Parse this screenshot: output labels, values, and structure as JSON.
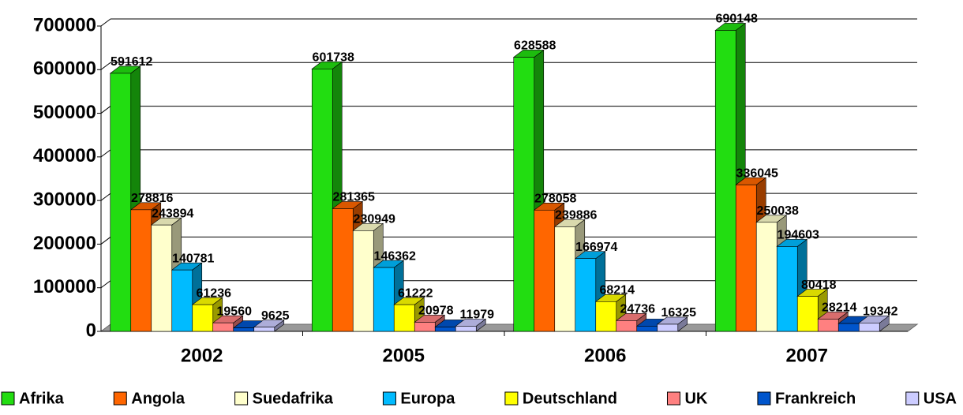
{
  "chart_data": {
    "type": "bar3d",
    "categories": [
      "2002",
      "2005",
      "2006",
      "2007"
    ],
    "series": [
      {
        "name": "Afrika",
        "color": "#22dd11",
        "values": [
          591612,
          601738,
          628588,
          690148
        ],
        "data_labels": true
      },
      {
        "name": "Angola",
        "color": "#ff6600",
        "values": [
          278816,
          281365,
          278058,
          336045
        ],
        "data_labels": true
      },
      {
        "name": "Suedafrika",
        "color": "#ffffcc",
        "values": [
          243894,
          230949,
          239886,
          250038
        ],
        "data_labels": true
      },
      {
        "name": "Europa",
        "color": "#00bbff",
        "values": [
          140781,
          146362,
          166974,
          194603
        ],
        "data_labels": true
      },
      {
        "name": "Deutschland",
        "color": "#ffff00",
        "values": [
          61236,
          61222,
          68214,
          80418
        ],
        "data_labels": true
      },
      {
        "name": "UK",
        "color": "#ff8080",
        "values": [
          19560,
          20978,
          24736,
          28214
        ],
        "data_labels": true
      },
      {
        "name": "Frankreich",
        "color": "#0055cc",
        "values": [
          8000,
          10000,
          12000,
          18000
        ],
        "data_labels": false
      },
      {
        "name": "USA",
        "color": "#ccccff",
        "values": [
          9625,
          11979,
          16325,
          19342
        ],
        "data_labels": true
      }
    ],
    "ylim": [
      0,
      700000
    ],
    "yticks": [
      0,
      100000,
      200000,
      300000,
      400000,
      500000,
      600000,
      700000
    ],
    "grid": true,
    "legend": "bottom"
  }
}
